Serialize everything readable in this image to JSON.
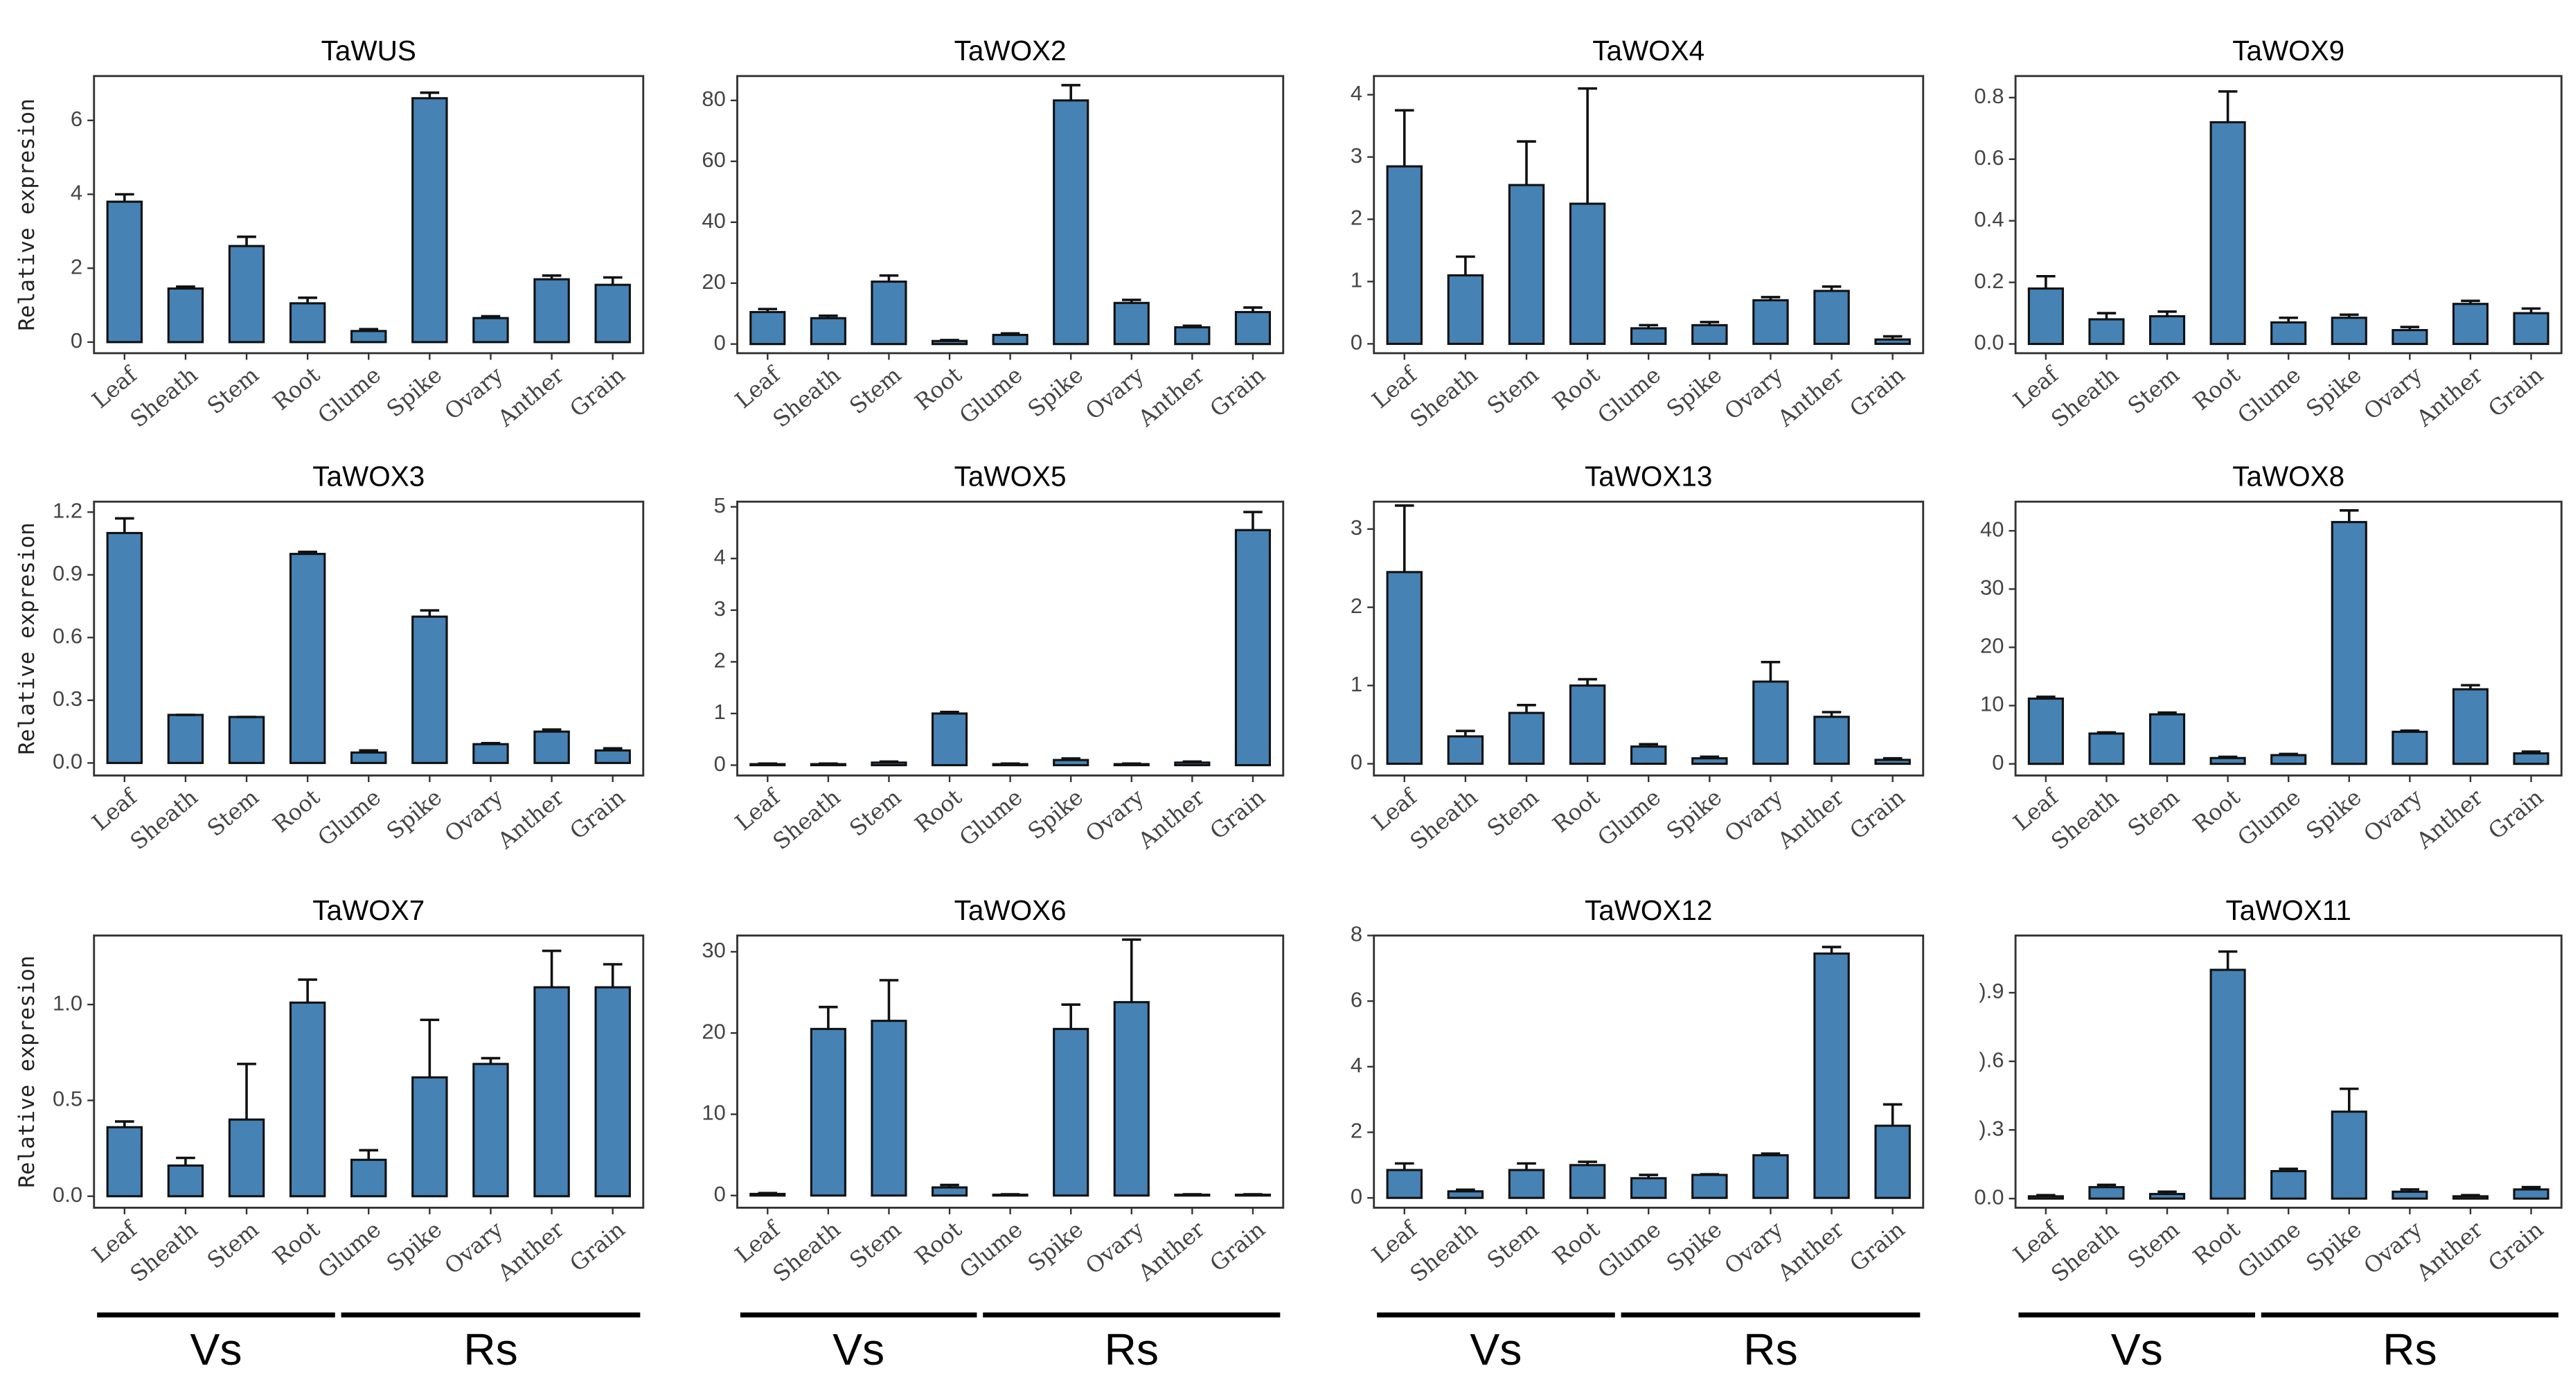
{
  "chart_data": [
    {
      "type": "bar",
      "title": "TaWUS",
      "y_label": "Relative expresion",
      "color": "#4682b4",
      "categories": [
        "Leaf",
        "Sheath",
        "Stem",
        "Root",
        "Glume",
        "Spike",
        "Ovary",
        "Anther",
        "Grain"
      ],
      "values": [
        3.8,
        1.45,
        2.6,
        1.05,
        0.3,
        6.6,
        0.65,
        1.7,
        1.55
      ],
      "errors": [
        0.2,
        0.05,
        0.25,
        0.15,
        0.05,
        0.15,
        0.05,
        0.1,
        0.2
      ],
      "ylim": [
        -0.3,
        7.2
      ],
      "yticks": [
        0,
        2,
        4,
        6
      ]
    },
    {
      "type": "bar",
      "title": "TaWOX2",
      "color": "#4682b4",
      "categories": [
        "Leaf",
        "Sheath",
        "Stem",
        "Root",
        "Glume",
        "Spike",
        "Ovary",
        "Anther",
        "Grain"
      ],
      "values": [
        10.5,
        8.5,
        20.5,
        1,
        3,
        80,
        13.5,
        5.5,
        10.5
      ],
      "errors": [
        1,
        0.8,
        2,
        0.3,
        0.5,
        5,
        1,
        0.5,
        1.5
      ],
      "ylim": [
        -3,
        88
      ],
      "yticks": [
        0,
        20,
        40,
        60,
        80
      ]
    },
    {
      "type": "bar",
      "title": "TaWOX4",
      "color": "#4682b4",
      "categories": [
        "Leaf",
        "Sheath",
        "Stem",
        "Root",
        "Glume",
        "Spike",
        "Ovary",
        "Anther",
        "Grain"
      ],
      "values": [
        2.85,
        1.1,
        2.55,
        2.25,
        0.25,
        0.3,
        0.7,
        0.85,
        0.07
      ],
      "errors": [
        0.9,
        0.3,
        0.7,
        1.85,
        0.05,
        0.05,
        0.05,
        0.07,
        0.05
      ],
      "ylim": [
        -0.15,
        4.3
      ],
      "yticks": [
        0,
        1,
        2,
        3,
        4
      ]
    },
    {
      "type": "bar",
      "title": "TaWOX9",
      "color": "#4682b4",
      "categories": [
        "Leaf",
        "Sheath",
        "Stem",
        "Root",
        "Glume",
        "Spike",
        "Ovary",
        "Anther",
        "Grain"
      ],
      "values": [
        0.18,
        0.08,
        0.09,
        0.72,
        0.07,
        0.085,
        0.045,
        0.13,
        0.1
      ],
      "errors": [
        0.04,
        0.02,
        0.015,
        0.1,
        0.015,
        0.01,
        0.01,
        0.01,
        0.015
      ],
      "ylim": [
        -0.03,
        0.87
      ],
      "yticks": [
        {
          "value": 0,
          "label": "0.0"
        },
        0.2,
        0.4,
        0.6,
        0.8
      ]
    },
    {
      "type": "bar",
      "title": "TaWOX3",
      "y_label": "Relative expresion",
      "color": "#4682b4",
      "categories": [
        "Leaf",
        "Sheath",
        "Stem",
        "Root",
        "Glume",
        "Spike",
        "Ovary",
        "Anther",
        "Grain"
      ],
      "values": [
        1.1,
        0.23,
        0.22,
        1.0,
        0.05,
        0.7,
        0.09,
        0.15,
        0.06
      ],
      "errors": [
        0.07,
        0,
        0,
        0.01,
        0.01,
        0.03,
        0.005,
        0.01,
        0.01
      ],
      "ylim": [
        -0.06,
        1.25
      ],
      "yticks": [
        {
          "value": 0,
          "label": "0.0"
        },
        0.3,
        0.6,
        0.9,
        1.2
      ]
    },
    {
      "type": "bar",
      "title": "TaWOX5",
      "color": "#4682b4",
      "categories": [
        "Leaf",
        "Sheath",
        "Stem",
        "Root",
        "Glume",
        "Spike",
        "Ovary",
        "Anther",
        "Grain"
      ],
      "values": [
        0.02,
        0.02,
        0.05,
        1.0,
        0.02,
        0.1,
        0.02,
        0.05,
        4.55
      ],
      "errors": [
        0.01,
        0.01,
        0.02,
        0.03,
        0.01,
        0.03,
        0.01,
        0.02,
        0.35
      ],
      "ylim": [
        -0.2,
        5.1
      ],
      "yticks": [
        0,
        1,
        2,
        3,
        4,
        5
      ]
    },
    {
      "type": "bar",
      "title": "TaWOX13",
      "color": "#4682b4",
      "categories": [
        "Leaf",
        "Sheath",
        "Stem",
        "Root",
        "Glume",
        "Spike",
        "Ovary",
        "Anther",
        "Grain"
      ],
      "values": [
        2.45,
        0.35,
        0.65,
        1.0,
        0.22,
        0.07,
        1.05,
        0.6,
        0.05
      ],
      "errors": [
        0.85,
        0.07,
        0.1,
        0.08,
        0.03,
        0.02,
        0.25,
        0.06,
        0.02
      ],
      "ylim": [
        -0.15,
        3.35
      ],
      "yticks": [
        0,
        1,
        2,
        3
      ]
    },
    {
      "type": "bar",
      "title": "TaWOX8",
      "color": "#4682b4",
      "categories": [
        "Leaf",
        "Sheath",
        "Stem",
        "Root",
        "Glume",
        "Spike",
        "Ovary",
        "Anther",
        "Grain"
      ],
      "values": [
        11.2,
        5.2,
        8.5,
        1,
        1.5,
        41.5,
        5.5,
        12.8,
        1.8
      ],
      "errors": [
        0.3,
        0.2,
        0.3,
        0.2,
        0.2,
        2,
        0.2,
        0.7,
        0.3
      ],
      "ylim": [
        -2,
        45
      ],
      "yticks": [
        0,
        10,
        20,
        30,
        40
      ]
    },
    {
      "type": "bar",
      "title": "TaWOX7",
      "y_label": "Relative expresion",
      "color": "#4682b4",
      "categories": [
        "Leaf",
        "Sheath",
        "Stem",
        "Root",
        "Glume",
        "Spike",
        "Ovary",
        "Anther",
        "Grain"
      ],
      "values": [
        0.36,
        0.16,
        0.4,
        1.01,
        0.19,
        0.62,
        0.69,
        1.09,
        1.09
      ],
      "errors": [
        0.03,
        0.04,
        0.29,
        0.12,
        0.05,
        0.3,
        0.03,
        0.19,
        0.12
      ],
      "ylim": [
        -0.06,
        1.36
      ],
      "yticks": [
        {
          "value": 0,
          "label": "0.0"
        },
        0.5,
        {
          "value": 1,
          "label": "1.0"
        }
      ],
      "groups": [
        {
          "label": "Vs",
          "categories": [
            "Leaf",
            "Sheath",
            "Stem",
            "Root"
          ]
        },
        {
          "label": "Rs",
          "categories": [
            "Glume",
            "Spike",
            "Ovary",
            "Anther",
            "Grain"
          ]
        }
      ]
    },
    {
      "type": "bar",
      "title": "TaWOX6",
      "color": "#4682b4",
      "categories": [
        "Leaf",
        "Sheath",
        "Stem",
        "Root",
        "Glume",
        "Spike",
        "Ovary",
        "Anther",
        "Grain"
      ],
      "values": [
        0.2,
        20.5,
        21.5,
        1,
        0.1,
        20.5,
        23.8,
        0.1,
        0.1
      ],
      "errors": [
        0.1,
        2.7,
        5,
        0.3,
        0.05,
        3,
        7.7,
        0.05,
        0.05
      ],
      "ylim": [
        -1.5,
        32
      ],
      "yticks": [
        0,
        10,
        20,
        30
      ],
      "groups": [
        {
          "label": "Vs",
          "categories": [
            "Leaf",
            "Sheath",
            "Stem",
            "Root"
          ]
        },
        {
          "label": "Rs",
          "categories": [
            "Glume",
            "Spike",
            "Ovary",
            "Anther",
            "Grain"
          ]
        }
      ]
    },
    {
      "type": "bar",
      "title": "TaWOX12",
      "color": "#4682b4",
      "categories": [
        "Leaf",
        "Sheath",
        "Stem",
        "Root",
        "Glume",
        "Spike",
        "Ovary",
        "Anther",
        "Grain"
      ],
      "values": [
        0.85,
        0.2,
        0.85,
        1.0,
        0.6,
        0.7,
        1.3,
        7.45,
        2.2
      ],
      "errors": [
        0.2,
        0.05,
        0.2,
        0.1,
        0.1,
        0.02,
        0.05,
        0.2,
        0.65
      ],
      "ylim": [
        -0.3,
        8
      ],
      "yticks": [
        0,
        2,
        4,
        6,
        8
      ],
      "groups": [
        {
          "label": "Vs",
          "categories": [
            "Leaf",
            "Sheath",
            "Stem",
            "Root"
          ]
        },
        {
          "label": "Rs",
          "categories": [
            "Glume",
            "Spike",
            "Ovary",
            "Anther",
            "Grain"
          ]
        }
      ]
    },
    {
      "type": "bar",
      "title": "TaWOX11",
      "color": "#4682b4",
      "categories": [
        "Leaf",
        "Sheath",
        "Stem",
        "Root",
        "Glume",
        "Spike",
        "Ovary",
        "Anther",
        "Grain"
      ],
      "values": [
        0.01,
        0.05,
        0.02,
        1.0,
        0.12,
        0.38,
        0.03,
        0.01,
        0.04
      ],
      "errors": [
        0.005,
        0.01,
        0.01,
        0.08,
        0.01,
        0.1,
        0.01,
        0.005,
        0.01
      ],
      "ylim": [
        -0.04,
        1.15
      ],
      "yticks": [
        {
          "value": 0,
          "label": "0.0"
        },
        {
          "value": 0.3,
          "label": ").3"
        },
        {
          "value": 0.6,
          "label": ").6"
        },
        {
          "value": 0.9,
          "label": ").9"
        }
      ],
      "groups": [
        {
          "label": "Vs",
          "categories": [
            "Leaf",
            "Sheath",
            "Stem",
            "Root"
          ]
        },
        {
          "label": "Rs",
          "categories": [
            "Glume",
            "Spike",
            "Ovary",
            "Anther",
            "Grain"
          ]
        }
      ]
    }
  ]
}
